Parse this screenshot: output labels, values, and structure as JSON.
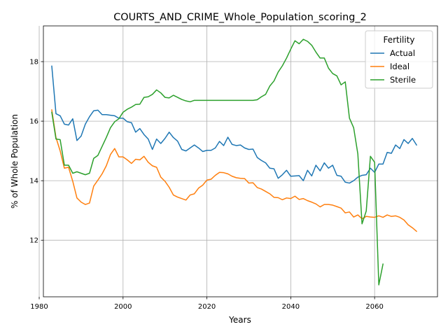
{
  "chart_data": {
    "type": "line",
    "title": "COURTS_AND_CRIME_Whole_Population_scoring_2",
    "xlabel": "Years",
    "ylabel": "% of Whole Population",
    "xlim": [
      1981,
      2075
    ],
    "ylim": [
      10.1,
      19.2
    ],
    "xticks": [
      1980,
      2000,
      2020,
      2040,
      2060
    ],
    "yticks": [
      12,
      14,
      16,
      18
    ],
    "grid": true,
    "legend": {
      "title": "Fertility",
      "placement": "top-right"
    },
    "series": [
      {
        "name": "Actual",
        "color": "#1f77b4",
        "points": [
          [
            1983,
            17.85
          ],
          [
            1984,
            16.25
          ],
          [
            1985,
            16.18
          ],
          [
            1986,
            15.9
          ],
          [
            1987,
            15.87
          ],
          [
            1988,
            16.08
          ],
          [
            1989,
            15.35
          ],
          [
            1990,
            15.5
          ],
          [
            1991,
            15.9
          ],
          [
            1992,
            16.15
          ],
          [
            1993,
            16.35
          ],
          [
            1994,
            16.37
          ],
          [
            1995,
            16.22
          ],
          [
            1996,
            16.22
          ],
          [
            1997,
            16.2
          ],
          [
            1998,
            16.18
          ],
          [
            1999,
            16.1
          ],
          [
            2000,
            16.1
          ],
          [
            2001,
            15.98
          ],
          [
            2002,
            15.95
          ],
          [
            2003,
            15.63
          ],
          [
            2004,
            15.75
          ],
          [
            2005,
            15.55
          ],
          [
            2006,
            15.4
          ],
          [
            2007,
            15.05
          ],
          [
            2008,
            15.4
          ],
          [
            2009,
            15.25
          ],
          [
            2010,
            15.42
          ],
          [
            2011,
            15.63
          ],
          [
            2012,
            15.45
          ],
          [
            2013,
            15.33
          ],
          [
            2014,
            15.05
          ],
          [
            2015,
            15.0
          ],
          [
            2016,
            15.1
          ],
          [
            2017,
            15.2
          ],
          [
            2018,
            15.1
          ],
          [
            2019,
            14.98
          ],
          [
            2020,
            15.02
          ],
          [
            2021,
            15.02
          ],
          [
            2022,
            15.1
          ],
          [
            2023,
            15.32
          ],
          [
            2024,
            15.18
          ],
          [
            2025,
            15.46
          ],
          [
            2026,
            15.22
          ],
          [
            2027,
            15.18
          ],
          [
            2028,
            15.2
          ],
          [
            2029,
            15.1
          ],
          [
            2030,
            15.05
          ],
          [
            2031,
            15.06
          ],
          [
            2032,
            14.78
          ],
          [
            2033,
            14.68
          ],
          [
            2034,
            14.6
          ],
          [
            2035,
            14.42
          ],
          [
            2036,
            14.4
          ],
          [
            2037,
            14.08
          ],
          [
            2038,
            14.2
          ],
          [
            2039,
            14.35
          ],
          [
            2040,
            14.15
          ],
          [
            2041,
            14.16
          ],
          [
            2042,
            14.17
          ],
          [
            2043,
            14.0
          ],
          [
            2044,
            14.35
          ],
          [
            2045,
            14.16
          ],
          [
            2046,
            14.52
          ],
          [
            2047,
            14.33
          ],
          [
            2048,
            14.6
          ],
          [
            2049,
            14.42
          ],
          [
            2050,
            14.52
          ],
          [
            2051,
            14.18
          ],
          [
            2052,
            14.15
          ],
          [
            2053,
            13.95
          ],
          [
            2054,
            13.92
          ],
          [
            2055,
            14.0
          ],
          [
            2056,
            14.12
          ],
          [
            2057,
            14.18
          ],
          [
            2058,
            14.2
          ],
          [
            2059,
            14.42
          ],
          [
            2060,
            14.28
          ],
          [
            2061,
            14.56
          ],
          [
            2062,
            14.56
          ],
          [
            2063,
            14.95
          ],
          [
            2064,
            14.92
          ],
          [
            2065,
            15.2
          ],
          [
            2066,
            15.08
          ],
          [
            2067,
            15.38
          ],
          [
            2068,
            15.25
          ],
          [
            2069,
            15.42
          ],
          [
            2070,
            15.2
          ]
        ]
      },
      {
        "name": "Ideal",
        "color": "#ff7f0e",
        "points": [
          [
            1983,
            16.38
          ],
          [
            1984,
            15.45
          ],
          [
            1985,
            15.0
          ],
          [
            1986,
            14.42
          ],
          [
            1987,
            14.45
          ],
          [
            1988,
            13.98
          ],
          [
            1989,
            13.42
          ],
          [
            1990,
            13.28
          ],
          [
            1991,
            13.2
          ],
          [
            1992,
            13.25
          ],
          [
            1993,
            13.82
          ],
          [
            1994,
            14.02
          ],
          [
            1995,
            14.23
          ],
          [
            1996,
            14.5
          ],
          [
            1997,
            14.88
          ],
          [
            1998,
            15.08
          ],
          [
            1999,
            14.8
          ],
          [
            2000,
            14.8
          ],
          [
            2001,
            14.7
          ],
          [
            2002,
            14.58
          ],
          [
            2003,
            14.72
          ],
          [
            2004,
            14.7
          ],
          [
            2005,
            14.82
          ],
          [
            2006,
            14.62
          ],
          [
            2007,
            14.5
          ],
          [
            2008,
            14.45
          ],
          [
            2009,
            14.12
          ],
          [
            2010,
            13.98
          ],
          [
            2011,
            13.78
          ],
          [
            2012,
            13.52
          ],
          [
            2013,
            13.45
          ],
          [
            2014,
            13.4
          ],
          [
            2015,
            13.35
          ],
          [
            2016,
            13.52
          ],
          [
            2017,
            13.56
          ],
          [
            2018,
            13.75
          ],
          [
            2019,
            13.85
          ],
          [
            2020,
            14.02
          ],
          [
            2021,
            14.05
          ],
          [
            2022,
            14.18
          ],
          [
            2023,
            14.28
          ],
          [
            2024,
            14.27
          ],
          [
            2025,
            14.23
          ],
          [
            2026,
            14.15
          ],
          [
            2027,
            14.1
          ],
          [
            2028,
            14.08
          ],
          [
            2029,
            14.07
          ],
          [
            2030,
            13.92
          ],
          [
            2031,
            13.93
          ],
          [
            2032,
            13.77
          ],
          [
            2033,
            13.72
          ],
          [
            2034,
            13.64
          ],
          [
            2035,
            13.56
          ],
          [
            2036,
            13.44
          ],
          [
            2037,
            13.43
          ],
          [
            2038,
            13.36
          ],
          [
            2039,
            13.42
          ],
          [
            2040,
            13.4
          ],
          [
            2041,
            13.48
          ],
          [
            2042,
            13.37
          ],
          [
            2043,
            13.4
          ],
          [
            2044,
            13.33
          ],
          [
            2045,
            13.28
          ],
          [
            2046,
            13.22
          ],
          [
            2047,
            13.12
          ],
          [
            2048,
            13.2
          ],
          [
            2049,
            13.2
          ],
          [
            2050,
            13.18
          ],
          [
            2051,
            13.13
          ],
          [
            2052,
            13.08
          ],
          [
            2053,
            12.92
          ],
          [
            2054,
            12.95
          ],
          [
            2055,
            12.78
          ],
          [
            2056,
            12.85
          ],
          [
            2057,
            12.72
          ],
          [
            2058,
            12.8
          ],
          [
            2059,
            12.78
          ],
          [
            2060,
            12.77
          ],
          [
            2061,
            12.82
          ],
          [
            2062,
            12.77
          ],
          [
            2063,
            12.85
          ],
          [
            2064,
            12.8
          ],
          [
            2065,
            12.82
          ],
          [
            2066,
            12.77
          ],
          [
            2067,
            12.68
          ],
          [
            2068,
            12.52
          ],
          [
            2069,
            12.42
          ],
          [
            2070,
            12.3
          ]
        ]
      },
      {
        "name": "Sterile",
        "color": "#2ca02c",
        "points": [
          [
            1983,
            16.3
          ],
          [
            1984,
            15.4
          ],
          [
            1985,
            15.38
          ],
          [
            1986,
            14.52
          ],
          [
            1987,
            14.52
          ],
          [
            1988,
            14.25
          ],
          [
            1989,
            14.3
          ],
          [
            1990,
            14.25
          ],
          [
            1991,
            14.2
          ],
          [
            1992,
            14.25
          ],
          [
            1993,
            14.75
          ],
          [
            1994,
            14.85
          ],
          [
            1995,
            15.15
          ],
          [
            1996,
            15.45
          ],
          [
            1997,
            15.78
          ],
          [
            1998,
            15.98
          ],
          [
            1999,
            16.08
          ],
          [
            2000,
            16.3
          ],
          [
            2001,
            16.4
          ],
          [
            2002,
            16.47
          ],
          [
            2003,
            16.56
          ],
          [
            2004,
            16.57
          ],
          [
            2005,
            16.8
          ],
          [
            2006,
            16.82
          ],
          [
            2007,
            16.9
          ],
          [
            2008,
            17.05
          ],
          [
            2009,
            16.95
          ],
          [
            2010,
            16.8
          ],
          [
            2011,
            16.78
          ],
          [
            2012,
            16.87
          ],
          [
            2013,
            16.8
          ],
          [
            2014,
            16.73
          ],
          [
            2015,
            16.68
          ],
          [
            2016,
            16.65
          ],
          [
            2017,
            16.7
          ],
          [
            2018,
            16.7
          ],
          [
            2019,
            16.7
          ],
          [
            2020,
            16.7
          ],
          [
            2021,
            16.7
          ],
          [
            2022,
            16.7
          ],
          [
            2023,
            16.7
          ],
          [
            2024,
            16.7
          ],
          [
            2025,
            16.7
          ],
          [
            2026,
            16.7
          ],
          [
            2027,
            16.7
          ],
          [
            2028,
            16.7
          ],
          [
            2029,
            16.7
          ],
          [
            2030,
            16.7
          ],
          [
            2031,
            16.7
          ],
          [
            2032,
            16.72
          ],
          [
            2033,
            16.82
          ],
          [
            2034,
            16.9
          ],
          [
            2035,
            17.18
          ],
          [
            2036,
            17.35
          ],
          [
            2037,
            17.65
          ],
          [
            2038,
            17.86
          ],
          [
            2039,
            18.12
          ],
          [
            2040,
            18.42
          ],
          [
            2041,
            18.7
          ],
          [
            2042,
            18.6
          ],
          [
            2043,
            18.75
          ],
          [
            2044,
            18.68
          ],
          [
            2045,
            18.55
          ],
          [
            2046,
            18.32
          ],
          [
            2047,
            18.12
          ],
          [
            2048,
            18.12
          ],
          [
            2049,
            17.78
          ],
          [
            2050,
            17.6
          ],
          [
            2051,
            17.52
          ],
          [
            2052,
            17.22
          ],
          [
            2053,
            17.32
          ],
          [
            2054,
            16.1
          ],
          [
            2055,
            15.78
          ],
          [
            2056,
            14.9
          ],
          [
            2057,
            12.55
          ],
          [
            2058,
            12.98
          ],
          [
            2059,
            14.82
          ],
          [
            2060,
            14.62
          ],
          [
            2061,
            10.5
          ],
          [
            2062,
            11.2
          ]
        ]
      }
    ]
  }
}
